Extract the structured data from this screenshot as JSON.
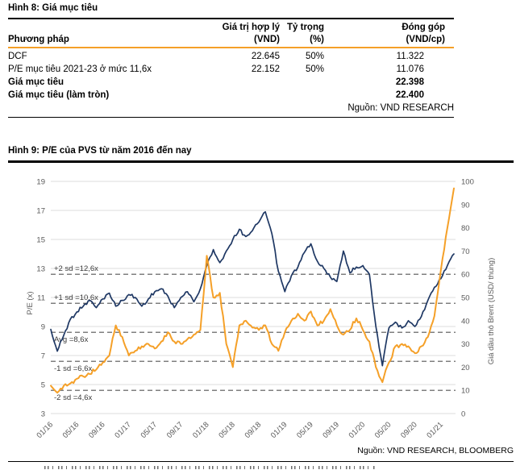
{
  "figure8": {
    "title": "Hình 8: Giá mục tiêu",
    "table": {
      "header": {
        "col1": "Phương pháp",
        "col2_line1": "Giá trị hợp lý",
        "col2_line2": "(VND)",
        "col3_line1": "Tỷ trọng",
        "col3_line2": "(%)",
        "col4_line1": "Đóng góp",
        "col4_line2": "(VND/cp)"
      },
      "rows": [
        {
          "method": "DCF",
          "fair_value": "22.645",
          "weight": "50%",
          "contribution": "11.322"
        },
        {
          "method": "P/E mục tiêu 2021-23 ở mức 11,6x",
          "fair_value": "22.152",
          "weight": "50%",
          "contribution": "11.076"
        },
        {
          "method": "Giá mục tiêu",
          "fair_value": "",
          "weight": "",
          "contribution": "22.398"
        },
        {
          "method": "Giá mục tiêu (làm tròn)",
          "fair_value": "",
          "weight": "",
          "contribution": "22.400"
        }
      ],
      "source": "Nguồn: VND RESEARCH"
    }
  },
  "figure9": {
    "title": "Hình 9: P/E của PVS từ năm 2016 đến nay",
    "source": "Nguồn: VND RESEARCH, BLOOMBERG"
  },
  "chart_data": {
    "type": "line",
    "title": "P/E của PVS từ năm 2016 đến nay",
    "grid": "horizontal",
    "legend_position": "none",
    "x_axis": {
      "start": "01/16",
      "end": "03/21",
      "sampling": "monthly",
      "points": 63,
      "tick_labels": [
        "01/16",
        "05/16",
        "09/16",
        "01/17",
        "05/17",
        "09/17",
        "01/18",
        "05/18",
        "09/18",
        "01/19",
        "05/19",
        "09/19",
        "01/20",
        "05/20",
        "09/20",
        "01/21"
      ]
    },
    "y_left": {
      "label": "P/E (x)",
      "min": 3,
      "max": 19,
      "ticks": [
        3,
        5,
        7,
        9,
        11,
        13,
        15,
        17,
        19
      ]
    },
    "y_right": {
      "label": "Giá dầu thô Brent (USD/ thùng)",
      "min": 0,
      "max": 100,
      "ticks": [
        0,
        10,
        20,
        30,
        40,
        50,
        60,
        70,
        80,
        90,
        100
      ]
    },
    "sd_lines": [
      {
        "label": "+2 sd =12,6x",
        "value": 12.6,
        "label_position": "above"
      },
      {
        "label": "+1 sd =10,6x",
        "value": 10.6,
        "label_position": "above"
      },
      {
        "label": "Avg =8,6x",
        "value": 8.6,
        "label_position": "below"
      },
      {
        "label": "-1 sd =6,6x",
        "value": 6.6,
        "label_position": "below"
      },
      {
        "label": "-2 sd =4,6x",
        "value": 4.6,
        "label_position": "below"
      }
    ],
    "series": [
      {
        "name": "P/E (x)",
        "axis": "left",
        "color": "#1F3864",
        "values": [
          8.8,
          7.3,
          8.4,
          9.5,
          10.0,
          10.4,
          10.8,
          10.3,
          10.9,
          11.3,
          10.4,
          10.8,
          11.2,
          11.0,
          10.4,
          10.9,
          11.4,
          11.6,
          11.1,
          10.3,
          11.0,
          11.4,
          10.7,
          11.6,
          13.2,
          14.3,
          13.4,
          14.2,
          15.0,
          15.7,
          15.2,
          15.6,
          16.2,
          16.9,
          15.4,
          12.8,
          11.4,
          12.5,
          13.1,
          14.1,
          14.7,
          13.5,
          13.0,
          12.4,
          12.1,
          14.2,
          12.7,
          13.1,
          13.2,
          12.6,
          9.0,
          6.3,
          8.9,
          9.3,
          8.9,
          9.4,
          9.0,
          9.7,
          10.8,
          11.7,
          12.3,
          13.2,
          14.0
        ]
      },
      {
        "name": "Giá dầu thô Brent (USD/ thùng)",
        "axis": "right",
        "color": "#F5A028",
        "values": [
          12,
          9,
          12,
          13,
          15,
          16,
          17,
          19,
          22,
          25,
          38,
          33,
          25,
          27,
          29,
          30,
          28,
          31,
          35,
          31,
          30,
          32,
          34,
          36,
          68,
          50,
          52,
          30,
          20,
          38,
          40,
          37,
          36,
          38,
          30,
          27,
          35,
          40,
          43,
          40,
          44,
          38,
          40,
          45,
          38,
          34,
          36,
          41,
          36,
          31,
          20,
          13.5,
          22,
          29,
          30,
          29,
          26,
          29,
          33,
          42,
          62,
          80,
          97
        ]
      }
    ]
  },
  "colors": {
    "navy": "#1F3864",
    "orange": "#F5A028",
    "grid": "#DCDCDC",
    "dashed": "#555555",
    "tick_text": "#595959",
    "annotation_text": "#3A3A3A"
  }
}
